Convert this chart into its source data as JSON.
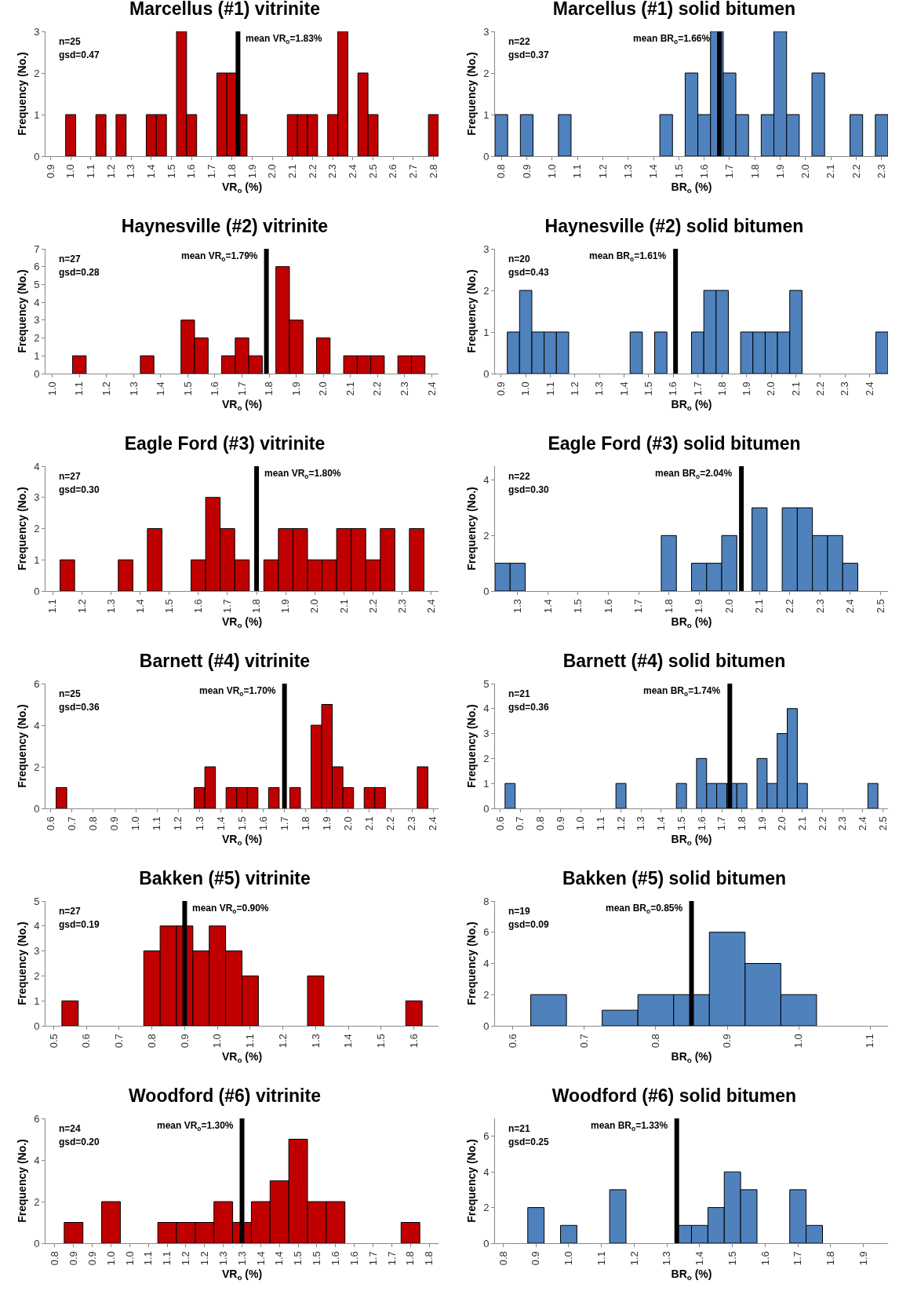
{
  "chart_data": [
    {
      "type": "histogram",
      "title": "Marcellus (#1) vitrinite",
      "xlabel": "VR$_{o}$ (%)",
      "ylabel": "Frequency (No.)",
      "color": "#c00000",
      "bins": [
        0.875,
        0.925,
        0.975,
        1.025,
        1.075,
        1.125,
        1.175,
        1.225,
        1.275,
        1.325,
        1.375,
        1.425,
        1.475,
        1.525,
        1.575,
        1.625,
        1.675,
        1.725,
        1.775,
        1.825,
        1.875,
        1.925,
        1.975,
        2.025,
        2.075,
        2.125,
        2.175,
        2.225,
        2.275,
        2.325,
        2.375,
        2.425,
        2.475,
        2.525,
        2.575,
        2.625,
        2.675,
        2.725,
        2.775,
        2.825
      ],
      "values": [
        0,
        0,
        1,
        0,
        0,
        1,
        0,
        1,
        0,
        0,
        1,
        1,
        0,
        3,
        1,
        0,
        0,
        2,
        2,
        1,
        0,
        0,
        0,
        0,
        1,
        1,
        1,
        0,
        1,
        3,
        0,
        2,
        1,
        0,
        0,
        0,
        0,
        0,
        1
      ],
      "xlim": [
        0.875,
        2.825
      ],
      "xticks": [
        0.9,
        {
          "value": 1,
          "label": "1.0"
        },
        1.1,
        1.2,
        1.3,
        1.4,
        1.5,
        1.6,
        1.7,
        1.8,
        1.9,
        {
          "value": 2,
          "label": "2.0"
        },
        2.1,
        2.2,
        2.3,
        2.4,
        2.5,
        2.6,
        2.7,
        2.8
      ],
      "ylim": [
        0,
        3
      ],
      "yticks": [
        0,
        1,
        2,
        3
      ],
      "ref_lines": [
        {
          "axis": "x",
          "value": 1.83,
          "label": "mean VR$_{o}$=1.83%",
          "color": "#000000"
        }
      ],
      "annotations": [
        "n=25",
        "gsd=0.47"
      ]
    },
    {
      "type": "histogram",
      "title": "Marcellus (#1) solid bitumen",
      "xlabel": "BR$_{o}$ (%)",
      "ylabel": "Frequency (No.)",
      "color": "#4f81bd",
      "bins": [
        0.775,
        0.825,
        0.875,
        0.925,
        0.975,
        1.025,
        1.075,
        1.125,
        1.175,
        1.225,
        1.275,
        1.325,
        1.375,
        1.425,
        1.475,
        1.525,
        1.575,
        1.625,
        1.675,
        1.725,
        1.775,
        1.825,
        1.875,
        1.925,
        1.975,
        2.025,
        2.075,
        2.125,
        2.175,
        2.225,
        2.275,
        2.325
      ],
      "values": [
        1,
        0,
        1,
        0,
        0,
        1,
        0,
        0,
        0,
        0,
        0,
        0,
        0,
        1,
        0,
        2,
        1,
        3,
        2,
        1,
        0,
        1,
        3,
        1,
        0,
        2,
        0,
        0,
        1,
        0,
        1
      ],
      "xlim": [
        0.775,
        2.325
      ],
      "xticks": [
        0.8,
        0.9,
        {
          "value": 1,
          "label": "1.0"
        },
        1.1,
        1.2,
        1.3,
        1.4,
        1.5,
        1.6,
        1.7,
        1.8,
        1.9,
        {
          "value": 2,
          "label": "2.0"
        },
        2.1,
        2.2,
        2.3
      ],
      "ylim": [
        0,
        3
      ],
      "yticks": [
        0,
        1,
        2,
        3
      ],
      "ref_lines": [
        {
          "axis": "x",
          "value": 1.66,
          "label": "mean BR$_{o}$=1.66%",
          "color": "#000000"
        }
      ],
      "annotations": [
        "n=22",
        "gsd=0.37"
      ]
    },
    {
      "type": "histogram",
      "title": "Haynesville (#2) vitrinite",
      "xlabel": "VR$_{o}$ (%)",
      "ylabel": "Frequency (No.)",
      "color": "#c00000",
      "bins": [
        0.975,
        1.025,
        1.075,
        1.125,
        1.175,
        1.225,
        1.275,
        1.325,
        1.375,
        1.425,
        1.475,
        1.525,
        1.575,
        1.625,
        1.675,
        1.725,
        1.775,
        1.825,
        1.875,
        1.925,
        1.975,
        2.025,
        2.075,
        2.125,
        2.175,
        2.225,
        2.275,
        2.325,
        2.375,
        2.425
      ],
      "values": [
        0,
        0,
        1,
        0,
        0,
        0,
        0,
        1,
        0,
        0,
        3,
        2,
        0,
        1,
        2,
        1,
        0,
        6,
        3,
        0,
        2,
        0,
        1,
        1,
        1,
        0,
        1,
        1,
        0
      ],
      "xlim": [
        0.975,
        2.425
      ],
      "xticks": [
        {
          "value": 1,
          "label": "1.0"
        },
        1.1,
        1.2,
        1.3,
        1.4,
        1.5,
        1.6,
        1.7,
        1.8,
        1.9,
        {
          "value": 2,
          "label": "2.0"
        },
        2.1,
        2.2,
        2.3,
        2.4
      ],
      "ylim": [
        0,
        7
      ],
      "yticks": [
        0,
        1,
        2,
        3,
        4,
        5,
        6,
        7
      ],
      "ref_lines": [
        {
          "axis": "x",
          "value": 1.79,
          "label": "mean VR$_{o}$=1.79%",
          "color": "#000000"
        }
      ],
      "annotations": [
        "n=27",
        "gsd=0.28"
      ]
    },
    {
      "type": "histogram",
      "title": "Haynesville (#2) solid bitumen",
      "xlabel": "BR$_{o}$ (%)",
      "ylabel": "Frequency (No.)",
      "color": "#4f81bd",
      "bins": [
        0.875,
        0.925,
        0.975,
        1.025,
        1.075,
        1.125,
        1.175,
        1.225,
        1.275,
        1.325,
        1.375,
        1.425,
        1.475,
        1.525,
        1.575,
        1.625,
        1.675,
        1.725,
        1.775,
        1.825,
        1.875,
        1.925,
        1.975,
        2.025,
        2.075,
        2.125,
        2.175,
        2.225,
        2.275,
        2.325,
        2.375,
        2.425,
        2.475
      ],
      "values": [
        0,
        1,
        2,
        1,
        1,
        1,
        0,
        0,
        0,
        0,
        0,
        1,
        0,
        1,
        0,
        0,
        1,
        2,
        2,
        0,
        1,
        1,
        1,
        1,
        2,
        0,
        0,
        0,
        0,
        0,
        0,
        1
      ],
      "xlim": [
        0.875,
        2.475
      ],
      "xticks": [
        0.9,
        {
          "value": 1,
          "label": "1.0"
        },
        1.1,
        1.2,
        1.3,
        1.4,
        1.5,
        1.6,
        1.7,
        1.8,
        1.9,
        {
          "value": 2,
          "label": "2.0"
        },
        2.1,
        2.2,
        2.3,
        2.4
      ],
      "ylim": [
        0,
        3
      ],
      "yticks": [
        0,
        1,
        2,
        3
      ],
      "ref_lines": [
        {
          "axis": "x",
          "value": 1.61,
          "label": "mean BR$_{o}$=1.61%",
          "color": "#000000"
        }
      ],
      "annotations": [
        "n=20",
        "gsd=0.43"
      ]
    },
    {
      "type": "histogram",
      "title": "Eagle Ford (#3) vitrinite",
      "xlabel": "VR$_{o}$ (%)",
      "ylabel": "Frequency (No.)",
      "color": "#c00000",
      "bins": [
        1.075,
        1.125,
        1.175,
        1.225,
        1.275,
        1.325,
        1.375,
        1.425,
        1.475,
        1.525,
        1.575,
        1.625,
        1.675,
        1.725,
        1.775,
        1.825,
        1.875,
        1.925,
        1.975,
        2.025,
        2.075,
        2.125,
        2.175,
        2.225,
        2.275,
        2.325,
        2.375,
        2.425
      ],
      "values": [
        0,
        1,
        0,
        0,
        0,
        1,
        0,
        2,
        0,
        0,
        1,
        3,
        2,
        1,
        0,
        1,
        2,
        2,
        1,
        1,
        2,
        2,
        1,
        2,
        0,
        2,
        0
      ],
      "xlim": [
        1.075,
        2.425
      ],
      "xticks": [
        1.1,
        1.2,
        1.3,
        1.4,
        1.5,
        1.6,
        1.7,
        1.8,
        1.9,
        {
          "value": 2,
          "label": "2.0"
        },
        2.1,
        2.2,
        2.3,
        2.4
      ],
      "ylim": [
        0,
        4
      ],
      "yticks": [
        0,
        1,
        2,
        3,
        4
      ],
      "ref_lines": [
        {
          "axis": "x",
          "value": 1.8,
          "label": "mean VR$_{o}$=1.80%",
          "color": "#000000"
        }
      ],
      "annotations": [
        "n=27",
        "gsd=0.30"
      ]
    },
    {
      "type": "histogram",
      "title": "Eagle Ford (#3) solid bitumen",
      "xlabel": "BR$_{o}$ (%)",
      "ylabel": "Frequency (No.)",
      "color": "#4f81bd",
      "bins": [
        1.225,
        1.275,
        1.325,
        1.375,
        1.425,
        1.475,
        1.525,
        1.575,
        1.625,
        1.675,
        1.725,
        1.775,
        1.825,
        1.875,
        1.925,
        1.975,
        2.025,
        2.075,
        2.125,
        2.175,
        2.225,
        2.275,
        2.325,
        2.375,
        2.425,
        2.475,
        2.525
      ],
      "values": [
        1,
        1,
        0,
        0,
        0,
        0,
        0,
        0,
        0,
        0,
        0,
        2,
        0,
        1,
        1,
        2,
        0,
        3,
        0,
        3,
        3,
        2,
        2,
        1,
        0,
        0
      ],
      "xlim": [
        1.225,
        2.525
      ],
      "xticks": [
        1.3,
        1.4,
        1.5,
        1.6,
        1.7,
        1.8,
        1.9,
        {
          "value": 2,
          "label": "2.0"
        },
        2.1,
        2.2,
        2.3,
        2.4,
        2.5
      ],
      "ylim": [
        0,
        4.5
      ],
      "yticks": [
        0,
        2,
        4
      ],
      "ref_lines": [
        {
          "axis": "x",
          "value": 2.04,
          "label": "mean BR$_{o}$=2.04%",
          "color": "#000000"
        }
      ],
      "annotations": [
        "n=22",
        "gsd=0.30"
      ]
    },
    {
      "type": "histogram",
      "title": "Barnett (#4) vitrinite",
      "xlabel": "VR$_{o}$ (%)",
      "ylabel": "Frequency (No.)",
      "color": "#c00000",
      "bins": [
        0.575,
        0.625,
        0.675,
        0.725,
        0.775,
        0.825,
        0.875,
        0.925,
        0.975,
        1.025,
        1.075,
        1.125,
        1.175,
        1.225,
        1.275,
        1.325,
        1.375,
        1.425,
        1.475,
        1.525,
        1.575,
        1.625,
        1.675,
        1.725,
        1.775,
        1.825,
        1.875,
        1.925,
        1.975,
        2.025,
        2.075,
        2.125,
        2.175,
        2.225,
        2.275,
        2.325,
        2.375,
        2.425
      ],
      "values": [
        0,
        1,
        0,
        0,
        0,
        0,
        0,
        0,
        0,
        0,
        0,
        0,
        0,
        0,
        1,
        2,
        0,
        1,
        1,
        1,
        0,
        1,
        0,
        1,
        0,
        4,
        5,
        2,
        1,
        0,
        1,
        1,
        0,
        0,
        0,
        2,
        0
      ],
      "xlim": [
        0.575,
        2.425
      ],
      "xticks": [
        0.6,
        0.7,
        0.8,
        0.9,
        {
          "value": 1,
          "label": "1.0"
        },
        1.1,
        1.2,
        1.3,
        1.4,
        1.5,
        1.6,
        1.7,
        1.8,
        1.9,
        {
          "value": 2,
          "label": "2.0"
        },
        2.1,
        2.2,
        2.3,
        2.4
      ],
      "ylim": [
        0,
        6
      ],
      "yticks": [
        0,
        2,
        4,
        6
      ],
      "ref_lines": [
        {
          "axis": "x",
          "value": 1.7,
          "label": "mean VR$_{o}$=1.70%",
          "color": "#000000"
        }
      ],
      "annotations": [
        "n=25",
        "gsd=0.36"
      ]
    },
    {
      "type": "histogram",
      "title": "Barnett (#4) solid bitumen",
      "xlabel": "BR$_{o}$ (%)",
      "ylabel": "Frequency (No.)",
      "color": "#4f81bd",
      "bins": [
        0.575,
        0.625,
        0.675,
        0.725,
        0.775,
        0.825,
        0.875,
        0.925,
        0.975,
        1.025,
        1.075,
        1.125,
        1.175,
        1.225,
        1.275,
        1.325,
        1.375,
        1.425,
        1.475,
        1.525,
        1.575,
        1.625,
        1.675,
        1.725,
        1.775,
        1.825,
        1.875,
        1.925,
        1.975,
        2.025,
        2.075,
        2.125,
        2.175,
        2.225,
        2.275,
        2.325,
        2.375,
        2.425,
        2.475,
        2.525
      ],
      "values": [
        0,
        1,
        0,
        0,
        0,
        0,
        0,
        0,
        0,
        0,
        0,
        0,
        1,
        0,
        0,
        0,
        0,
        0,
        1,
        0,
        2,
        1,
        1,
        1,
        1,
        0,
        2,
        1,
        3,
        4,
        1,
        0,
        0,
        0,
        0,
        0,
        0,
        1,
        0
      ],
      "xlim": [
        0.575,
        2.525
      ],
      "xticks": [
        0.6,
        0.7,
        0.8,
        0.9,
        {
          "value": 1,
          "label": "1.0"
        },
        1.1,
        1.2,
        1.3,
        1.4,
        1.5,
        1.6,
        1.7,
        1.8,
        1.9,
        {
          "value": 2,
          "label": "2.0"
        },
        2.1,
        2.2,
        2.3,
        2.4,
        2.5
      ],
      "ylim": [
        0,
        5
      ],
      "yticks": [
        0,
        1,
        2,
        3,
        4,
        5
      ],
      "ref_lines": [
        {
          "axis": "x",
          "value": 1.74,
          "label": "mean BR$_{o}$=1.74%",
          "color": "#000000"
        }
      ],
      "annotations": [
        "n=21",
        "gsd=0.36"
      ]
    },
    {
      "type": "histogram",
      "title": "Bakken (#5) vitrinite",
      "xlabel": "VR$_{o}$ (%)",
      "ylabel": "Frequency (No.)",
      "color": "#c00000",
      "bins": [
        0.475,
        0.525,
        0.575,
        0.625,
        0.675,
        0.725,
        0.775,
        0.825,
        0.875,
        0.925,
        0.975,
        1.025,
        1.075,
        1.125,
        1.175,
        1.225,
        1.275,
        1.325,
        1.375,
        1.425,
        1.475,
        1.525,
        1.575,
        1.625,
        1.675
      ],
      "values": [
        0,
        1,
        0,
        0,
        0,
        0,
        3,
        4,
        4,
        3,
        4,
        3,
        2,
        0,
        0,
        0,
        2,
        0,
        0,
        0,
        0,
        0,
        1,
        0
      ],
      "xlim": [
        0.475,
        1.675
      ],
      "xticks": [
        0.5,
        0.6,
        0.7,
        0.8,
        0.9,
        {
          "value": 1,
          "label": "1.0"
        },
        1.1,
        1.2,
        1.3,
        1.4,
        1.5,
        1.6
      ],
      "ylim": [
        0,
        5
      ],
      "yticks": [
        0,
        1,
        2,
        3,
        4,
        5
      ],
      "ref_lines": [
        {
          "axis": "x",
          "value": 0.9,
          "label": "mean VR$_{o}$=0.90%",
          "color": "#000000"
        }
      ],
      "annotations": [
        "n=27",
        "gsd=0.19"
      ]
    },
    {
      "type": "histogram",
      "title": "Bakken (#5) solid bitumen",
      "xlabel": "BR$_{o}$ (%)",
      "ylabel": "Frequency (No.)",
      "color": "#4f81bd",
      "bins": [
        0.575,
        0.625,
        0.675,
        0.725,
        0.775,
        0.825,
        0.875,
        0.925,
        0.975,
        1.025,
        1.075,
        1.125
      ],
      "values": [
        0,
        2,
        0,
        1,
        2,
        2,
        6,
        4,
        2,
        0,
        0
      ],
      "xlim": [
        0.575,
        1.125
      ],
      "xticks": [
        0.6,
        0.7,
        0.8,
        0.9,
        {
          "value": 1,
          "label": "1.0"
        },
        1.1
      ],
      "ylim": [
        0,
        8
      ],
      "yticks": [
        0,
        2,
        4,
        6,
        8
      ],
      "ref_lines": [
        {
          "axis": "x",
          "value": 0.85,
          "label": "mean BR$_{o}$=0.85%",
          "color": "#000000"
        }
      ],
      "annotations": [
        "n=19",
        "gsd=0.09"
      ]
    },
    {
      "type": "histogram",
      "title": "Woodford (#6) vitrinite",
      "xlabel": "VR$_{o}$ (%)",
      "ylabel": "Frequency (No.)",
      "color": "#c00000",
      "bins": [
        0.775,
        0.825,
        0.875,
        0.925,
        0.975,
        1.025,
        1.075,
        1.125,
        1.175,
        1.225,
        1.275,
        1.325,
        1.375,
        1.425,
        1.475,
        1.525,
        1.575,
        1.625,
        1.675,
        1.725,
        1.775,
        1.825
      ],
      "values": [
        0,
        1,
        0,
        2,
        0,
        0,
        1,
        1,
        1,
        2,
        1,
        2,
        3,
        5,
        2,
        2,
        0,
        0,
        0,
        1,
        0
      ],
      "xlim": [
        0.775,
        1.825
      ],
      "xticks": [
        0.8,
        {
          "value": 0.85,
          "label": "0.9"
        },
        0.9,
        {
          "value": 0.95,
          "label": "1.0"
        },
        {
          "value": 1,
          "label": "1.0"
        },
        {
          "value": 1.05,
          "label": "1.1"
        },
        1.1,
        {
          "value": 1.15,
          "label": "1.2"
        },
        1.2,
        {
          "value": 1.25,
          "label": "1.3"
        },
        1.3,
        {
          "value": 1.35,
          "label": "1.4"
        },
        1.4,
        {
          "value": 1.45,
          "label": "1.5"
        },
        1.5,
        {
          "value": 1.55,
          "label": "1.6"
        },
        1.6,
        {
          "value": 1.65,
          "label": "1.7"
        },
        1.7,
        {
          "value": 1.75,
          "label": "1.8"
        },
        1.8
      ],
      "ylim": [
        0,
        6
      ],
      "yticks": [
        0,
        2,
        4,
        6
      ],
      "ref_lines": [
        {
          "axis": "x",
          "value": 1.3,
          "label": "mean VR$_{o}$=1.30%",
          "color": "#000000"
        }
      ],
      "annotations": [
        "n=24",
        "gsd=0.20"
      ]
    },
    {
      "type": "histogram",
      "title": "Woodford (#6) solid bitumen",
      "xlabel": "BR$_{o}$ (%)",
      "ylabel": "Frequency (No.)",
      "color": "#4f81bd",
      "bins": [
        0.775,
        0.825,
        0.875,
        0.925,
        0.975,
        1.025,
        1.075,
        1.125,
        1.175,
        1.225,
        1.275,
        1.325,
        1.375,
        1.425,
        1.475,
        1.525,
        1.575,
        1.625,
        1.675,
        1.725,
        1.775,
        1.825,
        1.875,
        1.925,
        1.975
      ],
      "values": [
        0,
        0,
        2,
        0,
        1,
        0,
        0,
        3,
        0,
        0,
        0,
        1,
        1,
        2,
        4,
        3,
        0,
        0,
        3,
        1,
        0,
        0,
        0,
        0
      ],
      "xlim": [
        0.775,
        1.975
      ],
      "xticks": [
        0.8,
        0.9,
        {
          "value": 1,
          "label": "1.0"
        },
        1.1,
        1.2,
        1.3,
        1.4,
        1.5,
        1.6,
        1.7,
        1.8,
        1.9
      ],
      "ylim": [
        0,
        7
      ],
      "yticks": [
        0,
        2,
        4,
        6
      ],
      "ref_lines": [
        {
          "axis": "x",
          "value": 1.33,
          "label": "mean BR$_{o}$=1.33%",
          "color": "#000000"
        }
      ],
      "annotations": [
        "n=21",
        "gsd=0.25"
      ]
    }
  ]
}
